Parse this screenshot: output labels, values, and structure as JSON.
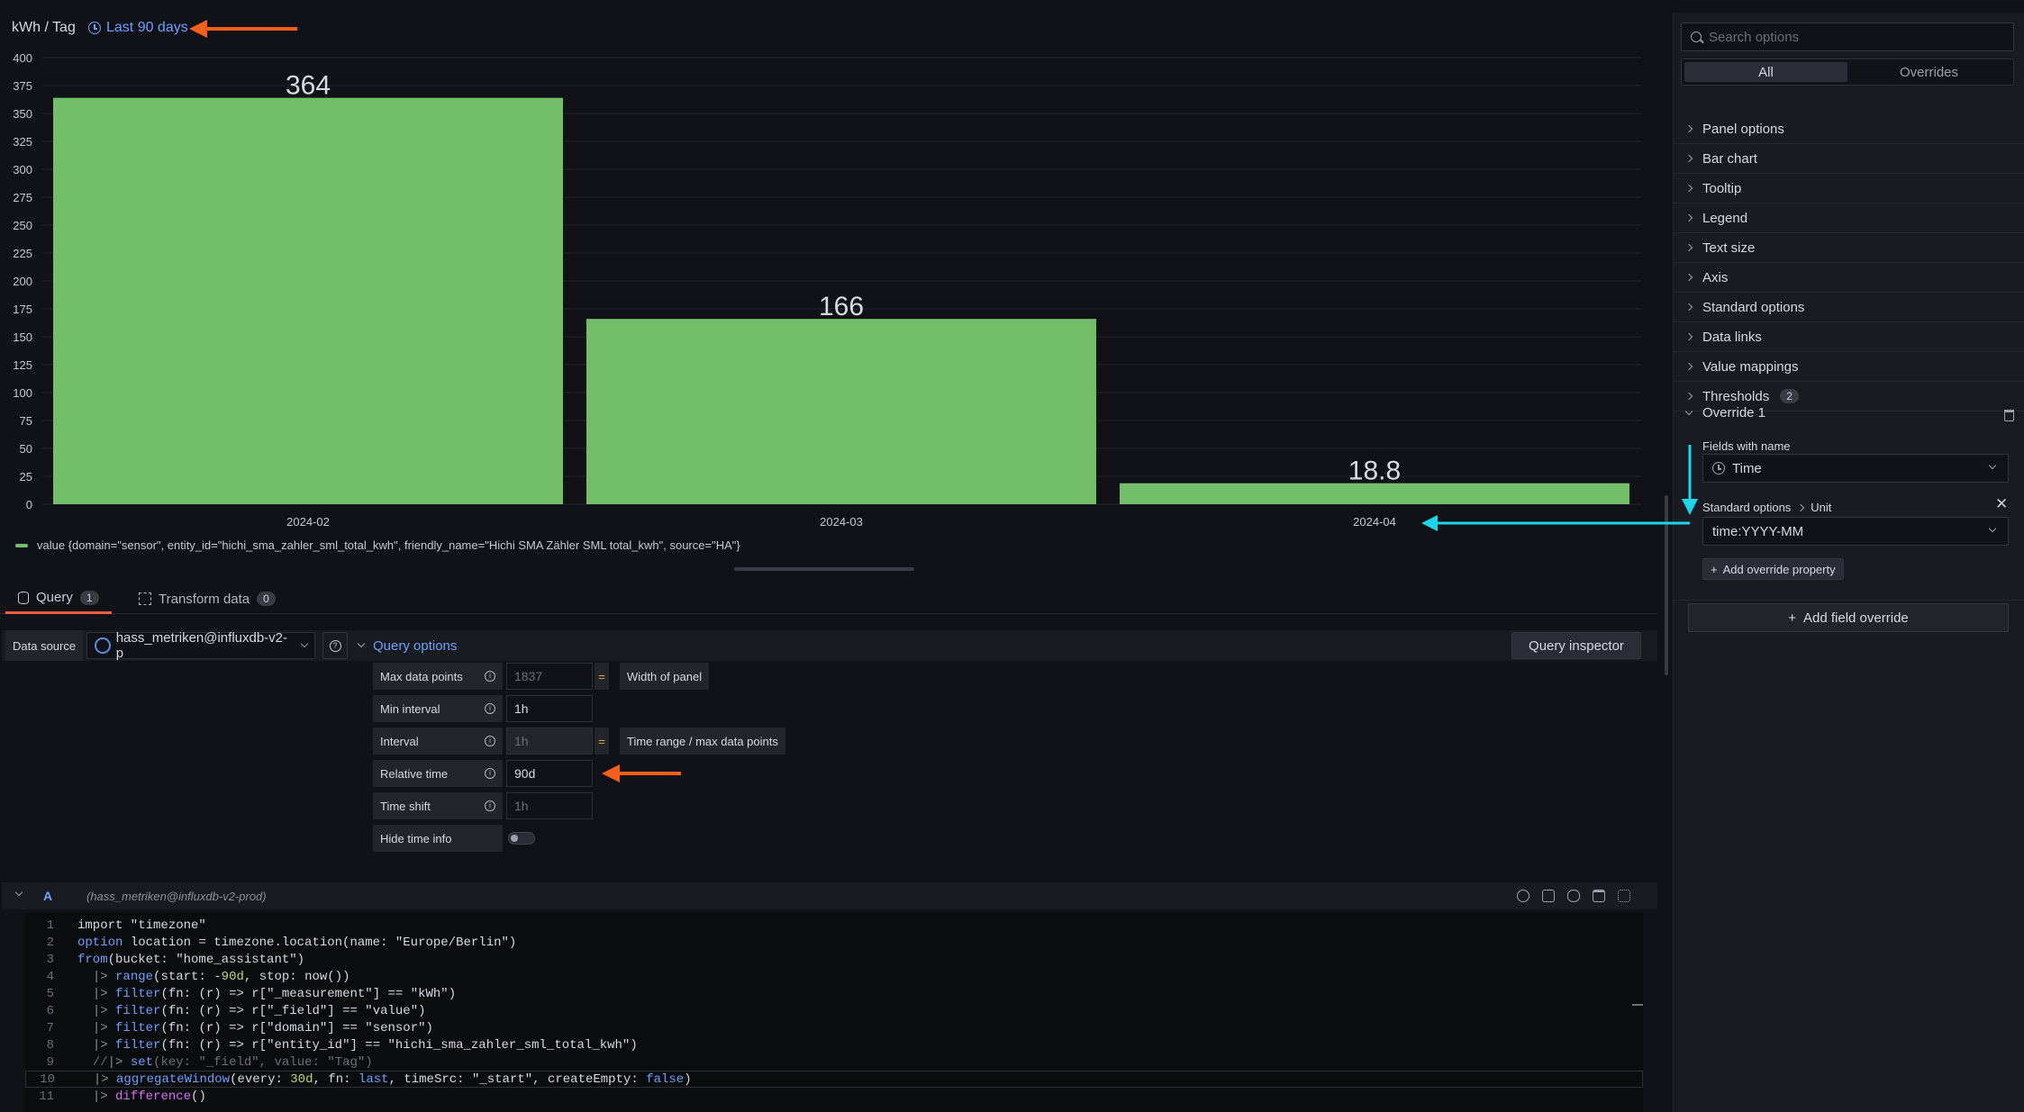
{
  "panel": {
    "title": "kWh / Tag",
    "time_range": "Last 90 days"
  },
  "chart_data": {
    "type": "bar",
    "categories": [
      "2024-02",
      "2024-03",
      "2024-04"
    ],
    "series": [
      {
        "name": "value {domain=\"sensor\", entity_id=\"hichi_sma_zahler_sml_total_kwh\", friendly_name=\"Hichi SMA Zähler SML total_kwh\", source=\"HA\"}",
        "values": [
          364,
          166,
          18.8
        ]
      }
    ],
    "value_labels": [
      "364",
      "166",
      "18.8"
    ],
    "y_ticks": [
      "0",
      "25",
      "50",
      "75",
      "100",
      "125",
      "150",
      "175",
      "200",
      "225",
      "250",
      "275",
      "300",
      "325",
      "350",
      "375",
      "400"
    ],
    "ylim": [
      0,
      400
    ],
    "grid": true,
    "legend_placement": "bottom-left",
    "bar_color": "#73bf69"
  },
  "tabs": [
    {
      "label": "Query",
      "count": "1"
    },
    {
      "label": "Transform data",
      "count": "0"
    }
  ],
  "query_toolbar": {
    "datasource_label": "Data source",
    "datasource_value": "hass_metriken@influxdb-v2-p",
    "query_options_label": "Query options",
    "query_inspector_label": "Query inspector"
  },
  "query_options": [
    {
      "label": "Max data points",
      "value": "1837",
      "placeholder": true,
      "note": "Width of panel"
    },
    {
      "label": "Min interval",
      "value": "1h",
      "placeholder": false,
      "note": ""
    },
    {
      "label": "Interval",
      "value": "1h",
      "placeholder": true,
      "note": "Time range / max data points"
    },
    {
      "label": "Relative time",
      "value": "90d",
      "placeholder": false,
      "note": ""
    },
    {
      "label": "Time shift",
      "value": "1h",
      "placeholder": true,
      "note": ""
    },
    {
      "label": "Hide time info",
      "value": "",
      "placeholder": false,
      "note": ""
    }
  ],
  "query_a": {
    "letter": "A",
    "datasource": "(hass_metriken@influxdb-v2-prod)"
  },
  "code_lines": [
    {
      "n": "1",
      "text": "import \"timezone\""
    },
    {
      "n": "2",
      "text": "option location = timezone.location(name: \"Europe/Berlin\")"
    },
    {
      "n": "3",
      "text": "from(bucket: \"home_assistant\")"
    },
    {
      "n": "4",
      "text": "  |> range(start: -90d, stop: now())"
    },
    {
      "n": "5",
      "text": "  |> filter(fn: (r) => r[\"_measurement\"] == \"kWh\")"
    },
    {
      "n": "6",
      "text": "  |> filter(fn: (r) => r[\"_field\"] == \"value\")"
    },
    {
      "n": "7",
      "text": "  |> filter(fn: (r) => r[\"domain\"] == \"sensor\")"
    },
    {
      "n": "8",
      "text": "  |> filter(fn: (r) => r[\"entity_id\"] == \"hichi_sma_zahler_sml_total_kwh\")"
    },
    {
      "n": "9",
      "text": "  //|> set(key: \"_field\", value: \"Tag\")"
    },
    {
      "n": "10",
      "text": "  |> aggregateWindow(every: 30d, fn: last, timeSrc: \"_start\", createEmpty: false)"
    },
    {
      "n": "11",
      "text": "  |> difference()"
    }
  ],
  "options_pane": {
    "search_placeholder": "Search options",
    "segments": [
      "All",
      "Overrides"
    ],
    "categories": [
      {
        "label": "Panel options",
        "badge": ""
      },
      {
        "label": "Bar chart",
        "badge": ""
      },
      {
        "label": "Tooltip",
        "badge": ""
      },
      {
        "label": "Legend",
        "badge": ""
      },
      {
        "label": "Text size",
        "badge": ""
      },
      {
        "label": "Axis",
        "badge": ""
      },
      {
        "label": "Standard options",
        "badge": ""
      },
      {
        "label": "Data links",
        "badge": ""
      },
      {
        "label": "Value mappings",
        "badge": ""
      },
      {
        "label": "Thresholds",
        "badge": "2"
      }
    ],
    "override": {
      "title": "Override 1",
      "matcher_label": "Fields with name",
      "matcher_value": "Time",
      "property_path_1": "Standard options",
      "property_path_2": "Unit",
      "property_value": "time:YYYY-MM",
      "add_property_label": "Add override property",
      "add_field_override_label": "Add field override"
    }
  },
  "colors": {
    "accent_blue": "#6e9fff",
    "bar_green": "#73bf69",
    "annotation_orange": "#f55f1e",
    "annotation_cyan": "#1fd4e8"
  }
}
